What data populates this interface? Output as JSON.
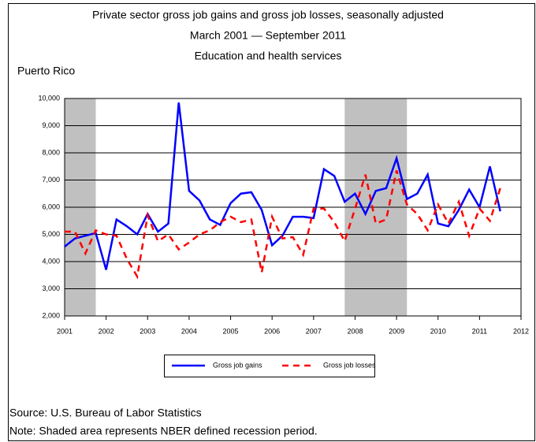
{
  "chart_data": {
    "type": "line",
    "title": "Private sector gross job gains and gross job losses, seasonally adjusted",
    "subtitle": "March 2001 — September 2011",
    "subtitle2": "Education and health services",
    "region": "Puerto Rico",
    "source": "Source: U.S. Bureau of Labor Statistics",
    "note": "Note: Shaded area represents NBER defined recession period.",
    "x": [
      2001,
      2001.25,
      2001.5,
      2001.75,
      2002,
      2002.25,
      2002.5,
      2002.75,
      2003,
      2003.25,
      2003.5,
      2003.75,
      2004,
      2004.25,
      2004.5,
      2004.75,
      2005,
      2005.25,
      2005.5,
      2005.75,
      2006,
      2006.25,
      2006.5,
      2006.75,
      2007,
      2007.25,
      2007.5,
      2007.75,
      2008,
      2008.25,
      2008.5,
      2008.75,
      2009,
      2009.25,
      2009.5,
      2009.75,
      2010,
      2010.25,
      2010.5,
      2010.75,
      2011,
      2011.25,
      2011.5
    ],
    "series": [
      {
        "name": "Gross job gains",
        "color": "#0000ff",
        "dash": false,
        "values": [
          4550,
          4850,
          4950,
          5050,
          3700,
          5550,
          5300,
          5000,
          5750,
          5100,
          5400,
          9850,
          6600,
          6250,
          5550,
          5350,
          6150,
          6500,
          6550,
          5900,
          4600,
          4950,
          5650,
          5650,
          5600,
          7400,
          7150,
          6200,
          6500,
          5750,
          6600,
          6700,
          7800,
          6300,
          6500,
          7200,
          5400,
          5300,
          5900,
          6650,
          6000,
          7500,
          5850
        ]
      },
      {
        "name": "Gross job losses",
        "color": "#ff0000",
        "dash": true,
        "values": [
          5100,
          5100,
          4300,
          5150,
          5000,
          4950,
          4100,
          3450,
          5700,
          4750,
          5000,
          4450,
          4700,
          5000,
          5150,
          5450,
          5650,
          5450,
          5550,
          3600,
          5650,
          4850,
          4900,
          4250,
          5950,
          5950,
          5450,
          4750,
          5950,
          7200,
          5400,
          5550,
          7350,
          6100,
          5750,
          5150,
          6100,
          5400,
          6200,
          4950,
          5950,
          5500,
          6700
        ]
      }
    ],
    "recessions": [
      [
        2001,
        2001.75
      ],
      [
        2007.75,
        2009.25
      ]
    ],
    "recession_color": "#c0c0c0",
    "xlim": [
      2001,
      2012
    ],
    "xticks": [
      2001,
      2002,
      2003,
      2004,
      2005,
      2006,
      2007,
      2008,
      2009,
      2010,
      2011,
      2012
    ],
    "ylim": [
      2000,
      10000
    ],
    "yticks": [
      {
        "value": 2000,
        "label": "2,000"
      },
      {
        "value": 3000,
        "label": "3,000"
      },
      {
        "value": 4000,
        "label": "4,000"
      },
      {
        "value": 5000,
        "label": "5,000"
      },
      {
        "value": 6000,
        "label": "6,000"
      },
      {
        "value": 7000,
        "label": "7,000"
      },
      {
        "value": 8000,
        "label": "8,000"
      },
      {
        "value": 9000,
        "label": "9,000"
      },
      {
        "value": 10000,
        "label": "10,000"
      }
    ],
    "grid": true
  }
}
